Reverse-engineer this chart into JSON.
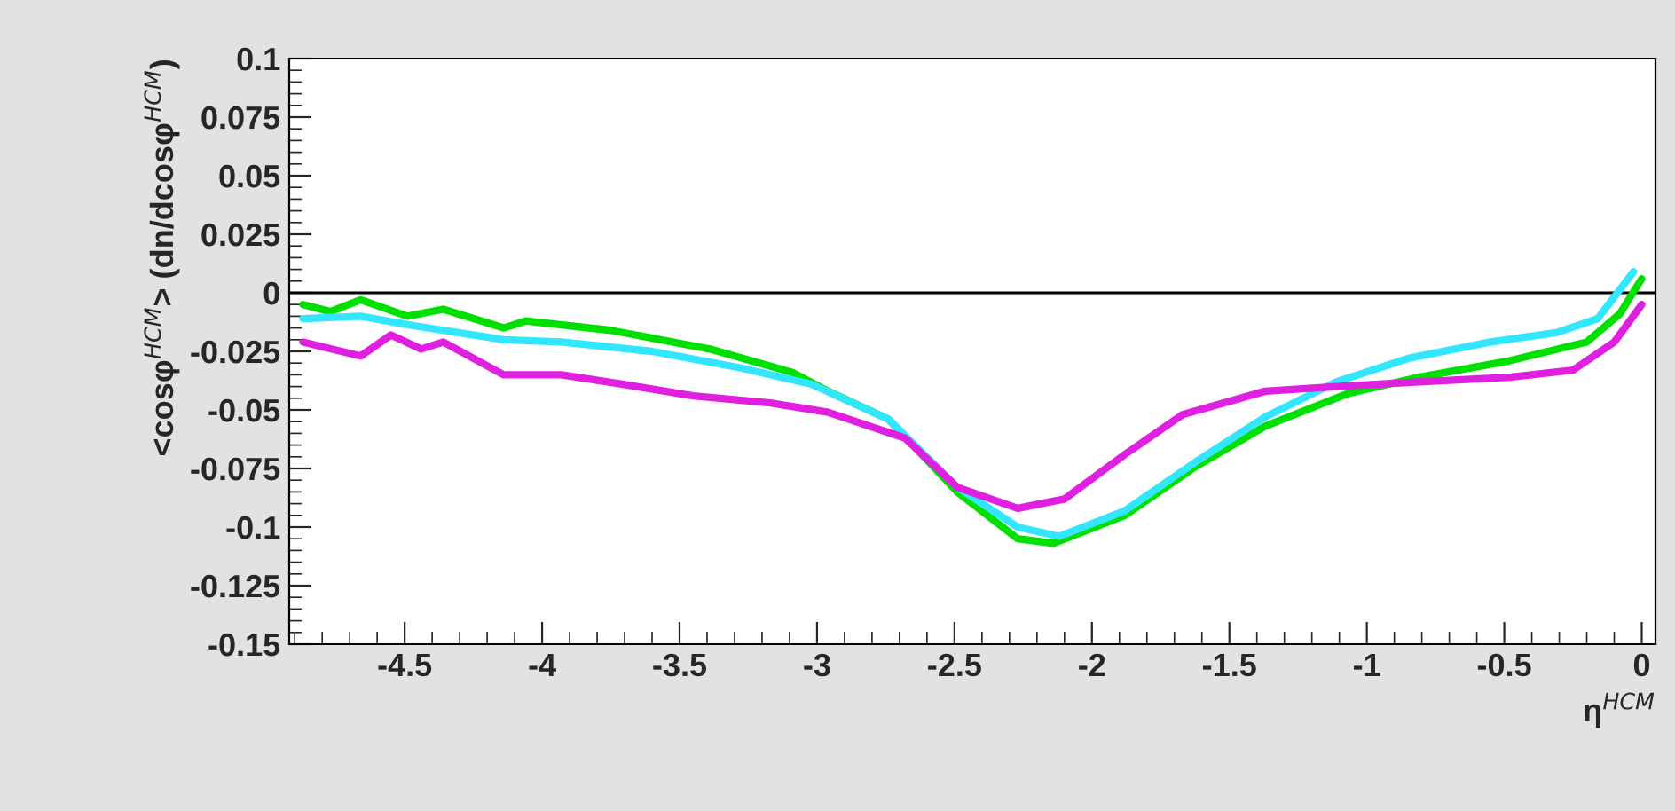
{
  "chart_data": {
    "type": "line",
    "xlabel": "η$^{HCM}$",
    "ylabel": "<cosφ$^{HCM}$> (dn/dcosφ$^{HCM}$)",
    "xlim": [
      -4.92,
      0.05
    ],
    "xticks": [
      -4.5,
      -4,
      -3.5,
      -3,
      -2.5,
      -2,
      -1.5,
      -1,
      -0.5,
      0
    ],
    "ylim": [
      -0.15,
      0.1
    ],
    "yticks": [
      -0.15,
      -0.125,
      -0.1,
      -0.075,
      -0.05,
      -0.025,
      0,
      0.025,
      0.05,
      0.075,
      0.1
    ],
    "grid": false,
    "marker": "none",
    "line_style": "solid",
    "ref_lines": [
      {
        "axis": "y",
        "value": 0,
        "color": "#000000"
      }
    ],
    "series": [
      {
        "color": "#00e000",
        "x": [
          -4.87,
          -4.77,
          -4.66,
          -4.49,
          -4.36,
          -4.14,
          -4.06,
          -3.75,
          -3.39,
          -3.09,
          -2.96,
          -2.74,
          -2.49,
          -2.27,
          -2.14,
          -1.88,
          -1.62,
          -1.37,
          -1.07,
          -0.81,
          -0.48,
          -0.2,
          -0.08,
          0.0
        ],
        "values": [
          -0.005,
          -0.008,
          -0.003,
          -0.01,
          -0.007,
          -0.015,
          -0.012,
          -0.016,
          -0.024,
          -0.034,
          -0.042,
          -0.054,
          -0.085,
          -0.105,
          -0.107,
          -0.095,
          -0.074,
          -0.057,
          -0.043,
          -0.036,
          -0.029,
          -0.021,
          -0.009,
          0.006
        ]
      },
      {
        "color": "#33e6ff",
        "x": [
          -4.87,
          -4.66,
          -4.47,
          -4.14,
          -3.93,
          -3.6,
          -3.28,
          -3.02,
          -2.74,
          -2.49,
          -2.27,
          -2.12,
          -1.88,
          -1.62,
          -1.37,
          -1.11,
          -0.85,
          -0.55,
          -0.31,
          -0.16,
          -0.03
        ],
        "values": [
          -0.011,
          -0.01,
          -0.014,
          -0.02,
          -0.021,
          -0.025,
          -0.032,
          -0.039,
          -0.054,
          -0.083,
          -0.1,
          -0.104,
          -0.093,
          -0.072,
          -0.053,
          -0.038,
          -0.028,
          -0.021,
          -0.017,
          -0.011,
          0.009
        ]
      },
      {
        "color": "#e020e0",
        "x": [
          -4.87,
          -4.66,
          -4.55,
          -4.44,
          -4.36,
          -4.14,
          -3.93,
          -3.71,
          -3.45,
          -3.17,
          -2.96,
          -2.68,
          -2.49,
          -2.27,
          -2.1,
          -1.88,
          -1.67,
          -1.37,
          -1.11,
          -0.81,
          -0.48,
          -0.25,
          -0.1,
          0.0
        ],
        "values": [
          -0.021,
          -0.027,
          -0.018,
          -0.024,
          -0.021,
          -0.035,
          -0.035,
          -0.039,
          -0.044,
          -0.047,
          -0.051,
          -0.062,
          -0.083,
          -0.092,
          -0.088,
          -0.069,
          -0.052,
          -0.042,
          -0.04,
          -0.038,
          -0.036,
          -0.033,
          -0.021,
          -0.005
        ]
      }
    ]
  }
}
